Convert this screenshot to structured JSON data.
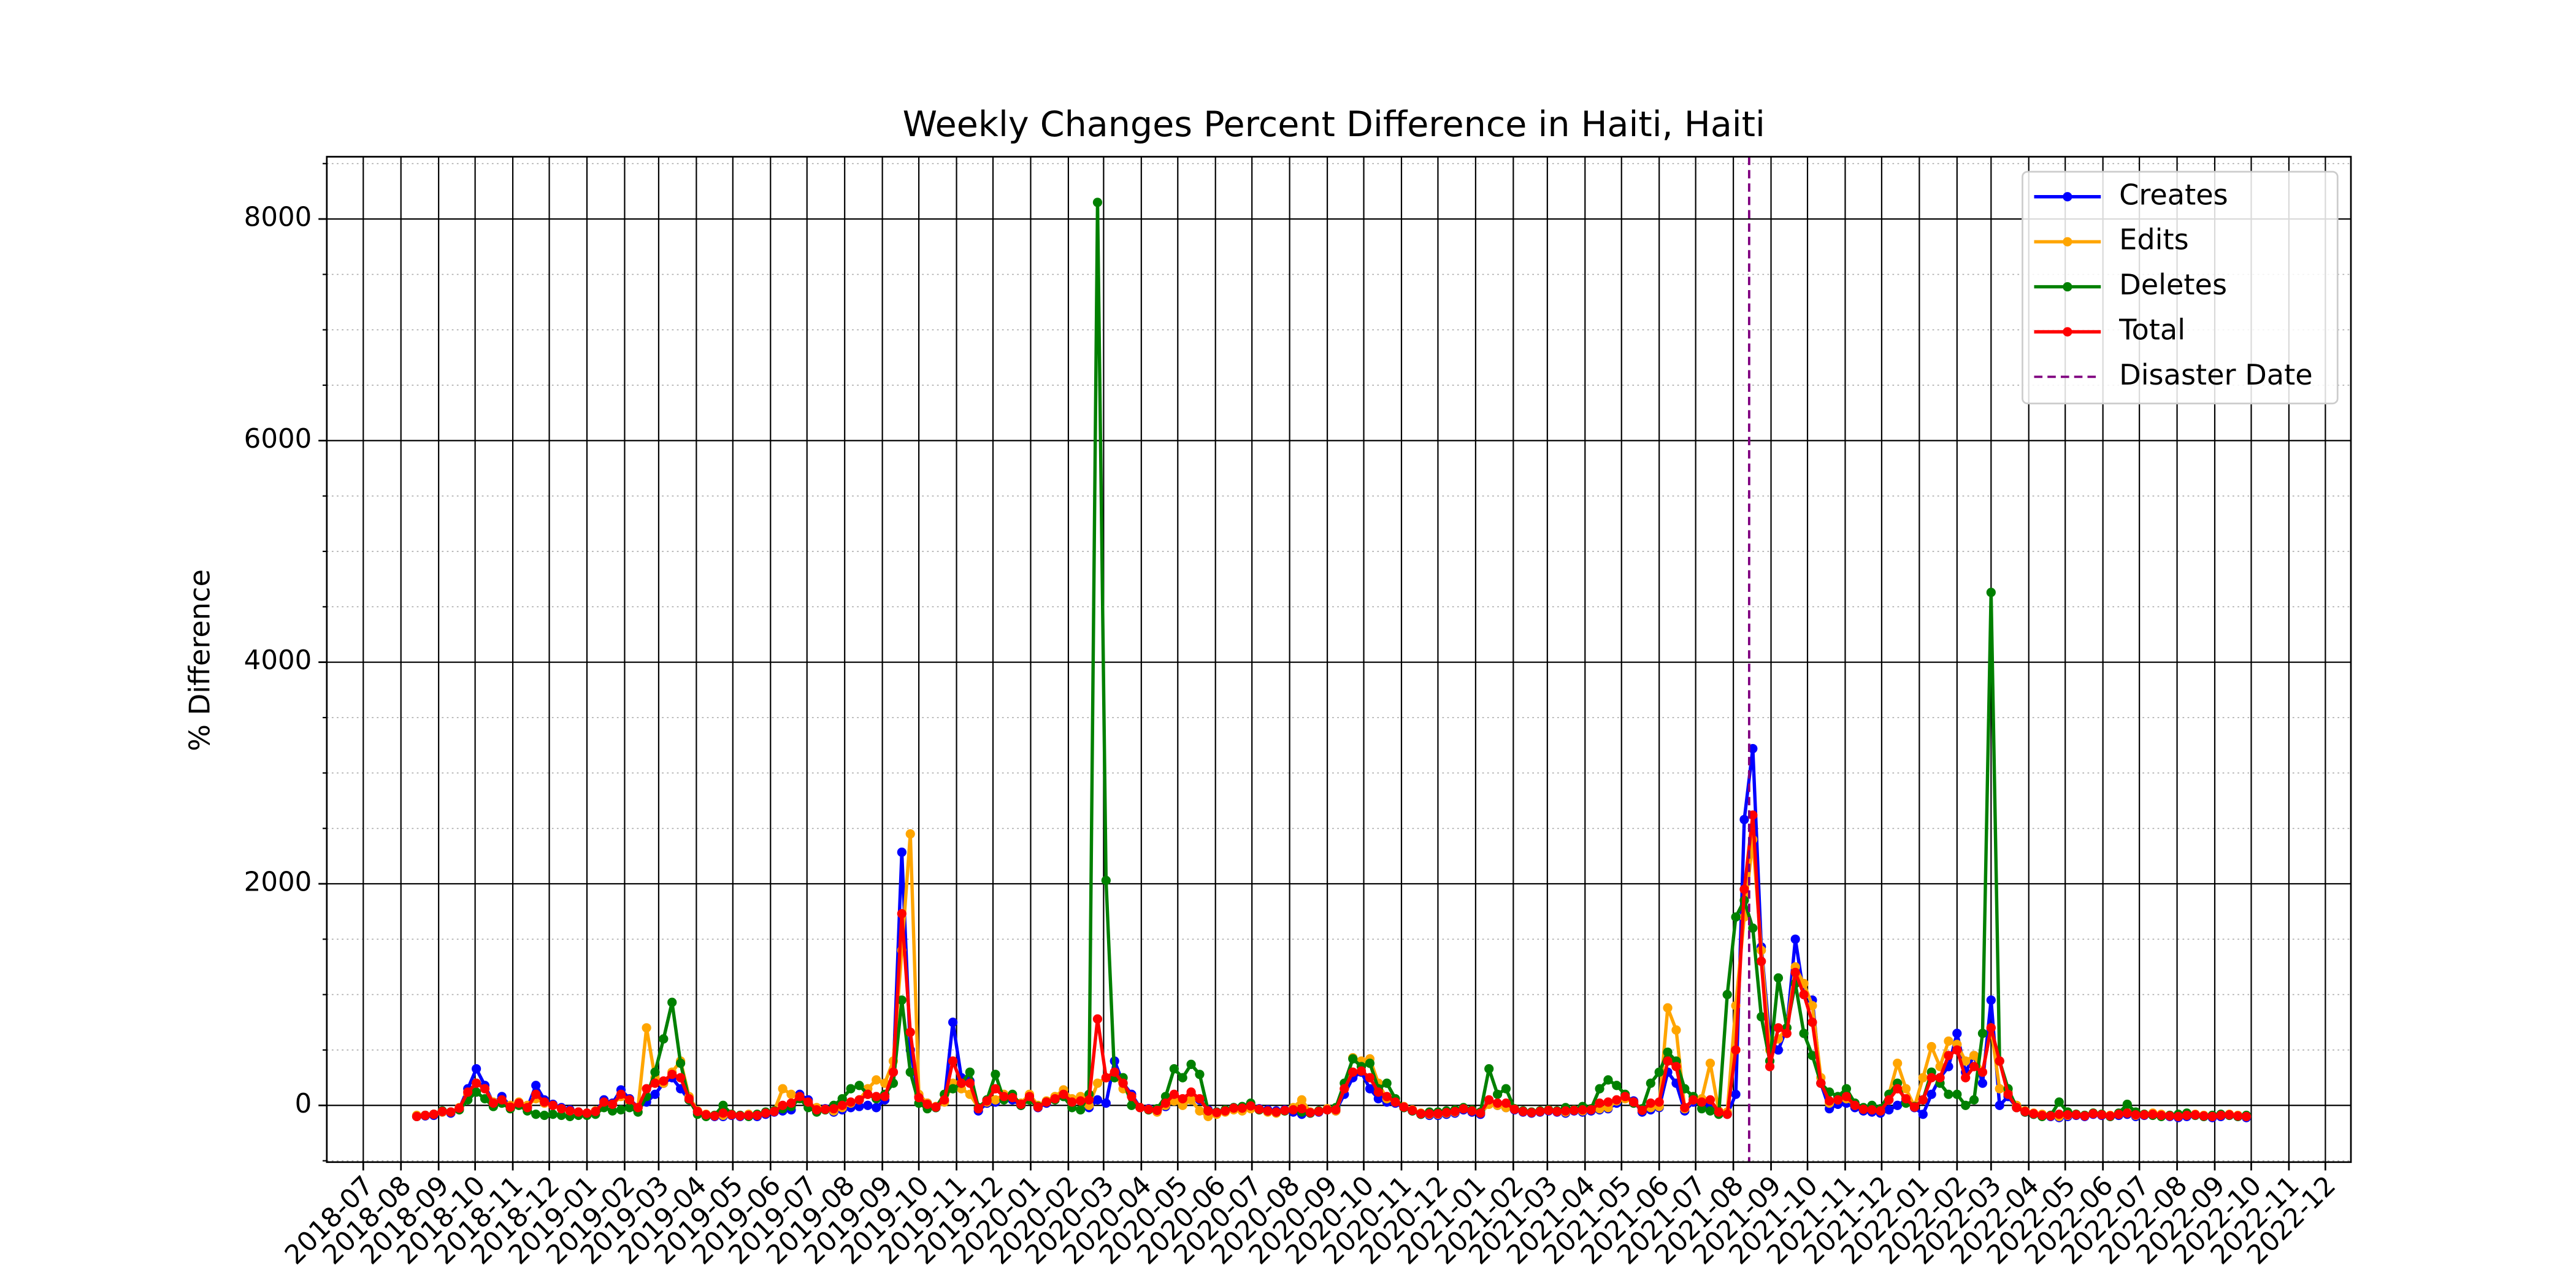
{
  "chart_data": {
    "type": "line",
    "title": "Weekly Changes Percent Difference in Haiti, Haiti",
    "y_label": "% Difference",
    "x": [
      "2018-08-14",
      "2018-08-21",
      "2018-08-28",
      "2018-09-04",
      "2018-09-11",
      "2018-09-18",
      "2018-09-25",
      "2018-10-02",
      "2018-10-09",
      "2018-10-16",
      "2018-10-23",
      "2018-10-30",
      "2018-11-06",
      "2018-11-13",
      "2018-11-20",
      "2018-11-27",
      "2018-12-04",
      "2018-12-11",
      "2018-12-18",
      "2018-12-25",
      "2019-01-01",
      "2019-01-08",
      "2019-01-15",
      "2019-01-22",
      "2019-01-29",
      "2019-02-05",
      "2019-02-12",
      "2019-02-19",
      "2019-02-26",
      "2019-03-05",
      "2019-03-12",
      "2019-03-19",
      "2019-03-26",
      "2019-04-02",
      "2019-04-09",
      "2019-04-16",
      "2019-04-23",
      "2019-04-30",
      "2019-05-07",
      "2019-05-14",
      "2019-05-21",
      "2019-05-28",
      "2019-06-04",
      "2019-06-11",
      "2019-06-18",
      "2019-06-25",
      "2019-07-02",
      "2019-07-09",
      "2019-07-16",
      "2019-07-23",
      "2019-07-30",
      "2019-08-06",
      "2019-08-13",
      "2019-08-20",
      "2019-08-27",
      "2019-09-03",
      "2019-09-10",
      "2019-09-17",
      "2019-09-24",
      "2019-10-01",
      "2019-10-08",
      "2019-10-15",
      "2019-10-22",
      "2019-10-29",
      "2019-11-05",
      "2019-11-12",
      "2019-11-19",
      "2019-11-26",
      "2019-12-03",
      "2019-12-10",
      "2019-12-17",
      "2019-12-24",
      "2019-12-31",
      "2020-01-07",
      "2020-01-14",
      "2020-01-21",
      "2020-01-28",
      "2020-02-04",
      "2020-02-11",
      "2020-02-18",
      "2020-02-25",
      "2020-03-03",
      "2020-03-10",
      "2020-03-17",
      "2020-03-24",
      "2020-03-31",
      "2020-04-07",
      "2020-04-14",
      "2020-04-21",
      "2020-04-28",
      "2020-05-05",
      "2020-05-12",
      "2020-05-19",
      "2020-05-26",
      "2020-06-02",
      "2020-06-09",
      "2020-06-16",
      "2020-06-23",
      "2020-06-30",
      "2020-07-07",
      "2020-07-14",
      "2020-07-21",
      "2020-07-28",
      "2020-08-04",
      "2020-08-11",
      "2020-08-18",
      "2020-08-25",
      "2020-09-01",
      "2020-09-08",
      "2020-09-15",
      "2020-09-22",
      "2020-09-29",
      "2020-10-06",
      "2020-10-13",
      "2020-10-20",
      "2020-10-27",
      "2020-11-03",
      "2020-11-10",
      "2020-11-17",
      "2020-11-24",
      "2020-12-01",
      "2020-12-08",
      "2020-12-15",
      "2020-12-22",
      "2020-12-29",
      "2021-01-05",
      "2021-01-12",
      "2021-01-19",
      "2021-01-26",
      "2021-02-02",
      "2021-02-09",
      "2021-02-16",
      "2021-02-23",
      "2021-03-02",
      "2021-03-09",
      "2021-03-16",
      "2021-03-23",
      "2021-03-30",
      "2021-04-06",
      "2021-04-13",
      "2021-04-20",
      "2021-04-27",
      "2021-05-04",
      "2021-05-11",
      "2021-05-18",
      "2021-05-25",
      "2021-06-01",
      "2021-06-08",
      "2021-06-15",
      "2021-06-22",
      "2021-06-29",
      "2021-07-06",
      "2021-07-13",
      "2021-07-20",
      "2021-07-27",
      "2021-08-03",
      "2021-08-10",
      "2021-08-17",
      "2021-08-24",
      "2021-08-31",
      "2021-09-07",
      "2021-09-14",
      "2021-09-21",
      "2021-09-28",
      "2021-10-05",
      "2021-10-12",
      "2021-10-19",
      "2021-10-26",
      "2021-11-02",
      "2021-11-09",
      "2021-11-16",
      "2021-11-23",
      "2021-11-30",
      "2021-12-07",
      "2021-12-14",
      "2021-12-21",
      "2021-12-28",
      "2022-01-04",
      "2022-01-11",
      "2022-01-18",
      "2022-01-25",
      "2022-02-01",
      "2022-02-08",
      "2022-02-15",
      "2022-02-22",
      "2022-03-01",
      "2022-03-08",
      "2022-03-15",
      "2022-03-22",
      "2022-03-29",
      "2022-04-05",
      "2022-04-12",
      "2022-04-19",
      "2022-04-26",
      "2022-05-03",
      "2022-05-10",
      "2022-05-17",
      "2022-05-24",
      "2022-05-31",
      "2022-06-07",
      "2022-06-14",
      "2022-06-21",
      "2022-06-28",
      "2022-07-05",
      "2022-07-12",
      "2022-07-19",
      "2022-07-26",
      "2022-08-02",
      "2022-08-09",
      "2022-08-16",
      "2022-08-23",
      "2022-08-30",
      "2022-09-06",
      "2022-09-13",
      "2022-09-20",
      "2022-09-27"
    ],
    "series": [
      {
        "name": "Creates",
        "color": "blue",
        "values": [
          -100,
          -95,
          -90,
          -60,
          -70,
          -30,
          150,
          330,
          180,
          20,
          80,
          -10,
          20,
          -20,
          180,
          50,
          10,
          -20,
          -40,
          -60,
          -80,
          -60,
          50,
          20,
          140,
          60,
          -20,
          30,
          100,
          200,
          250,
          150,
          50,
          -60,
          -90,
          -100,
          -100,
          -90,
          -100,
          -90,
          -100,
          -80,
          -60,
          -50,
          -40,
          100,
          50,
          -50,
          -30,
          -60,
          -40,
          -20,
          -10,
          0,
          -20,
          50,
          300,
          2285,
          500,
          80,
          20,
          -20,
          40,
          750,
          250,
          220,
          -50,
          20,
          30,
          80,
          50,
          0,
          80,
          -20,
          20,
          60,
          120,
          40,
          50,
          -20,
          50,
          20,
          400,
          200,
          100,
          -20,
          -30,
          -50,
          -10,
          60,
          20,
          80,
          50,
          -40,
          -60,
          -50,
          -20,
          -20,
          -10,
          -30,
          -40,
          -50,
          -40,
          -60,
          -80,
          -70,
          -60,
          -40,
          -50,
          100,
          250,
          300,
          150,
          60,
          30,
          20,
          -20,
          -50,
          -80,
          -90,
          -90,
          -80,
          -70,
          -40,
          -60,
          -80,
          20,
          0,
          -20,
          -40,
          -60,
          -70,
          -60,
          -50,
          -60,
          -70,
          -50,
          -60,
          -50,
          -40,
          -30,
          20,
          80,
          40,
          -60,
          -40,
          -20,
          300,
          200,
          -50,
          30,
          50,
          -20,
          -60,
          -80,
          100,
          2580,
          3220,
          1430,
          600,
          500,
          700,
          1500,
          1000,
          950,
          200,
          -30,
          10,
          20,
          -20,
          -50,
          -60,
          -70,
          -40,
          0,
          50,
          -20,
          -80,
          100,
          250,
          350,
          650,
          300,
          450,
          200,
          950,
          0,
          80,
          -20,
          -60,
          -80,
          -90,
          -100,
          -110,
          -100,
          -90,
          -100,
          -80,
          -90,
          -100,
          -90,
          -80,
          -100,
          -90,
          -80,
          -90,
          -100,
          -110,
          -100,
          -90,
          -100,
          -110,
          -100,
          -90,
          -100,
          -110
        ]
      },
      {
        "name": "Edits",
        "color": "orange",
        "values": [
          -90,
          -90,
          -80,
          -60,
          -60,
          -20,
          100,
          200,
          150,
          30,
          40,
          0,
          30,
          0,
          60,
          20,
          0,
          -30,
          -50,
          -60,
          -70,
          -50,
          20,
          10,
          80,
          40,
          -20,
          700,
          250,
          200,
          300,
          400,
          80,
          -50,
          -80,
          -90,
          -90,
          -80,
          -90,
          -80,
          -90,
          -70,
          -50,
          150,
          100,
          60,
          20,
          -20,
          -40,
          -50,
          -20,
          20,
          50,
          150,
          230,
          200,
          400,
          1400,
          2450,
          100,
          20,
          -10,
          30,
          200,
          150,
          100,
          -20,
          30,
          50,
          100,
          80,
          20,
          100,
          0,
          40,
          80,
          140,
          60,
          80,
          0,
          200,
          250,
          300,
          150,
          80,
          -20,
          -40,
          -60,
          0,
          40,
          0,
          50,
          -50,
          -100,
          -80,
          -60,
          -40,
          -50,
          -30,
          -40,
          -60,
          -70,
          -50,
          -20,
          50,
          -60,
          -50,
          -30,
          -50,
          150,
          430,
          400,
          420,
          200,
          60,
          30,
          -10,
          -40,
          -70,
          -80,
          -80,
          -70,
          -60,
          -30,
          -50,
          -70,
          10,
          0,
          -20,
          -30,
          -50,
          -60,
          -50,
          -40,
          -50,
          -60,
          -40,
          -50,
          -40,
          -30,
          -20,
          40,
          60,
          30,
          -40,
          -20,
          -10,
          880,
          680,
          -30,
          50,
          60,
          380,
          -50,
          -60,
          900,
          1700,
          2400,
          1400,
          500,
          600,
          700,
          1250,
          1100,
          900,
          250,
          20,
          50,
          60,
          0,
          -30,
          -40,
          -50,
          100,
          380,
          150,
          -10,
          250,
          530,
          350,
          580,
          550,
          400,
          450,
          300,
          700,
          150,
          120,
          0,
          -50,
          -70,
          -80,
          -90,
          -100,
          -90,
          -80,
          -90,
          -70,
          -80,
          -90,
          -80,
          -70,
          -90,
          -80,
          -70,
          -80,
          -90,
          -100,
          -90,
          -80,
          -90,
          -100,
          -90,
          -80,
          -90,
          -100
        ]
      },
      {
        "name": "Deletes",
        "color": "green",
        "values": [
          -100,
          -90,
          -80,
          -50,
          -60,
          -40,
          50,
          120,
          60,
          -10,
          20,
          -30,
          0,
          -50,
          -80,
          -90,
          -80,
          -90,
          -100,
          -90,
          -90,
          -80,
          -20,
          -50,
          -40,
          -20,
          -60,
          80,
          300,
          600,
          930,
          380,
          50,
          -80,
          -100,
          -90,
          0,
          -80,
          -90,
          -100,
          -80,
          -60,
          -50,
          -30,
          -10,
          60,
          -20,
          -60,
          -40,
          0,
          60,
          150,
          180,
          100,
          60,
          100,
          200,
          950,
          300,
          20,
          -30,
          -20,
          100,
          150,
          200,
          300,
          -20,
          50,
          280,
          50,
          100,
          0,
          50,
          -10,
          30,
          50,
          80,
          -20,
          -40,
          100,
          8150,
          2030,
          250,
          250,
          0,
          -20,
          -40,
          -30,
          80,
          330,
          250,
          370,
          280,
          -50,
          -60,
          -40,
          -20,
          -10,
          20,
          -40,
          -50,
          -60,
          -50,
          -40,
          -60,
          -70,
          -50,
          -40,
          -20,
          200,
          420,
          350,
          380,
          150,
          200,
          60,
          -20,
          -50,
          -80,
          -60,
          -60,
          -50,
          -40,
          -20,
          -40,
          -60,
          330,
          100,
          150,
          -30,
          -50,
          -60,
          -50,
          -40,
          -50,
          -20,
          -40,
          -10,
          -30,
          150,
          230,
          180,
          100,
          20,
          -30,
          200,
          300,
          480,
          400,
          150,
          80,
          -30,
          -50,
          -80,
          1000,
          1700,
          1850,
          1600,
          800,
          400,
          1150,
          700,
          1100,
          650,
          450,
          200,
          120,
          80,
          150,
          20,
          -20,
          0,
          -30,
          100,
          200,
          20,
          -10,
          50,
          300,
          200,
          100,
          100,
          0,
          50,
          650,
          4630,
          400,
          150,
          -20,
          -60,
          -80,
          -100,
          -90,
          30,
          -60,
          -80,
          -90,
          -70,
          -80,
          -100,
          -70,
          10,
          -60,
          -80,
          -90,
          -100,
          -90,
          -80,
          -70,
          -90,
          -100,
          -90,
          -80,
          -90,
          -100,
          -90
        ]
      },
      {
        "name": "Total",
        "color": "red",
        "values": [
          -100,
          -90,
          -80,
          -55,
          -60,
          -25,
          120,
          200,
          150,
          20,
          50,
          -15,
          20,
          -20,
          100,
          30,
          0,
          -30,
          -50,
          -60,
          -70,
          -55,
          30,
          10,
          100,
          50,
          -20,
          150,
          200,
          220,
          280,
          250,
          60,
          -55,
          -85,
          -95,
          -70,
          -85,
          -95,
          -90,
          -90,
          -70,
          -55,
          0,
          20,
          80,
          30,
          -40,
          -35,
          -30,
          0,
          30,
          50,
          100,
          80,
          80,
          300,
          1730,
          660,
          70,
          10,
          -15,
          50,
          400,
          200,
          200,
          -30,
          40,
          150,
          80,
          70,
          10,
          80,
          -15,
          30,
          60,
          100,
          30,
          40,
          50,
          780,
          250,
          300,
          200,
          80,
          -20,
          -35,
          -45,
          20,
          100,
          60,
          120,
          60,
          -50,
          -65,
          -50,
          -25,
          -25,
          -5,
          -35,
          -50,
          -60,
          -45,
          -40,
          -30,
          -65,
          -55,
          -40,
          -40,
          150,
          300,
          310,
          250,
          120,
          80,
          30,
          -15,
          -45,
          -75,
          -75,
          -75,
          -65,
          -55,
          -30,
          -50,
          -70,
          50,
          20,
          20,
          -35,
          -55,
          -65,
          -55,
          -45,
          -55,
          -50,
          -45,
          -40,
          -40,
          20,
          30,
          50,
          80,
          30,
          -45,
          20,
          30,
          400,
          350,
          -20,
          50,
          30,
          50,
          -60,
          -80,
          500,
          1950,
          2620,
          1300,
          350,
          700,
          650,
          1200,
          1000,
          750,
          200,
          40,
          50,
          80,
          0,
          -35,
          -40,
          -50,
          50,
          150,
          60,
          -15,
          50,
          250,
          250,
          450,
          500,
          250,
          350,
          300,
          700,
          400,
          100,
          -20,
          -55,
          -75,
          -90,
          -95,
          -80,
          -85,
          -85,
          -95,
          -75,
          -85,
          -95,
          -80,
          -70,
          -85,
          -85,
          -80,
          -90,
          -95,
          -100,
          -90,
          -85,
          -95,
          -100,
          -90,
          -85,
          -95,
          -100
        ]
      }
    ],
    "vline": {
      "name": "Disaster Date",
      "x": "2021-08-14",
      "color": "purple"
    },
    "xlim": [
      "2018-06-01",
      "2022-12-22"
    ],
    "xticks": [
      "2018-07",
      "2018-08",
      "2018-09",
      "2018-10",
      "2018-11",
      "2018-12",
      "2019-01",
      "2019-02",
      "2019-03",
      "2019-04",
      "2019-05",
      "2019-06",
      "2019-07",
      "2019-08",
      "2019-09",
      "2019-10",
      "2019-11",
      "2019-12",
      "2020-01",
      "2020-02",
      "2020-03",
      "2020-04",
      "2020-05",
      "2020-06",
      "2020-07",
      "2020-08",
      "2020-09",
      "2020-10",
      "2020-11",
      "2020-12",
      "2021-01",
      "2021-02",
      "2021-03",
      "2021-04",
      "2021-05",
      "2021-06",
      "2021-07",
      "2021-08",
      "2021-09",
      "2021-10",
      "2021-11",
      "2021-12",
      "2022-01",
      "2022-02",
      "2022-03",
      "2022-04",
      "2022-05",
      "2022-06",
      "2022-07",
      "2022-08",
      "2022-09",
      "2022-10",
      "2022-11",
      "2022-12"
    ],
    "ylim": [
      -512,
      8562
    ],
    "yticks": [
      0,
      2000,
      4000,
      6000,
      8000
    ],
    "yminorticks": [
      -500,
      500,
      1000,
      1500,
      2500,
      3000,
      3500,
      4500,
      5000,
      5500,
      6500,
      7000,
      7500,
      8500
    ],
    "grid": true,
    "legend": "upper right"
  }
}
